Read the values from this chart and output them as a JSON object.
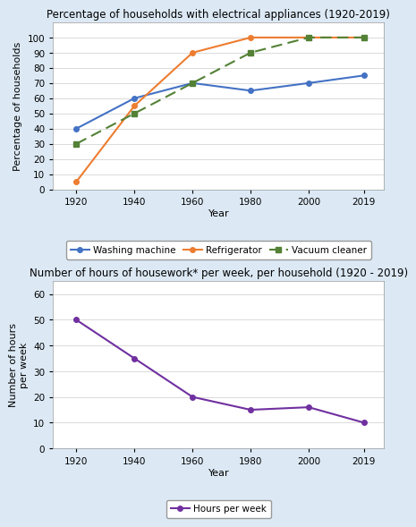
{
  "years": [
    1920,
    1940,
    1960,
    1980,
    2000,
    2019
  ],
  "washing_machine": [
    40,
    60,
    70,
    65,
    70,
    75
  ],
  "refrigerator": [
    5,
    55,
    90,
    100,
    100,
    100
  ],
  "vacuum_cleaner": [
    30,
    50,
    70,
    90,
    100,
    100
  ],
  "hours_per_week": [
    50,
    35,
    20,
    15,
    16,
    10
  ],
  "title1": "Percentage of households with electrical appliances (1920-2019)",
  "title2": "Number of hours of housework* per week, per household (1920 - 2019)",
  "ylabel1": "Percentage of households",
  "ylabel2": "Number of hours\nper week",
  "xlabel": "Year",
  "ylim1": [
    0,
    110
  ],
  "yticks1": [
    0,
    10,
    20,
    30,
    40,
    50,
    60,
    70,
    80,
    90,
    100
  ],
  "ylim2": [
    0,
    65
  ],
  "yticks2": [
    0,
    10,
    20,
    30,
    40,
    50,
    60
  ],
  "bg_color": "#dce9f5",
  "plot_bg_color": "#ffffff",
  "wm_color": "#4472c4",
  "ref_color": "#ed7d31",
  "vc_color": "#538135",
  "hw_color": "#7030a0",
  "title_fontsize": 8.5,
  "axis_label_fontsize": 8,
  "tick_fontsize": 7.5,
  "legend_fontsize": 7.5
}
